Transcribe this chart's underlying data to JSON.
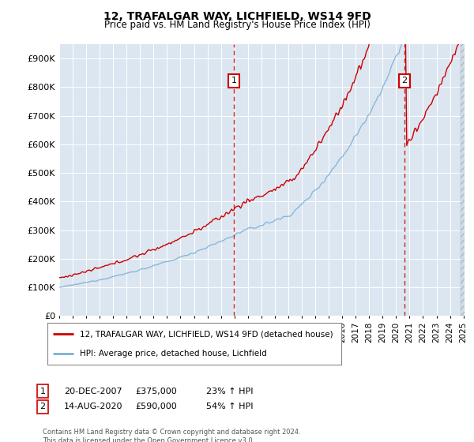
{
  "title": "12, TRAFALGAR WAY, LICHFIELD, WS14 9FD",
  "subtitle": "Price paid vs. HM Land Registry's House Price Index (HPI)",
  "hpi_label": "HPI: Average price, detached house, Lichfield",
  "property_label": "12, TRAFALGAR WAY, LICHFIELD, WS14 9FD (detached house)",
  "footer": "Contains HM Land Registry data © Crown copyright and database right 2024.\nThis data is licensed under the Open Government Licence v3.0.",
  "annotation1": {
    "label": "1",
    "date": "20-DEC-2007",
    "price": 375000,
    "pct": "23% ↑ HPI"
  },
  "annotation2": {
    "label": "2",
    "date": "14-AUG-2020",
    "price": 590000,
    "pct": "54% ↑ HPI"
  },
  "ylim": [
    0,
    950000
  ],
  "yticks": [
    0,
    100000,
    200000,
    300000,
    400000,
    500000,
    600000,
    700000,
    800000,
    900000
  ],
  "ytick_labels": [
    "£0",
    "£100K",
    "£200K",
    "£300K",
    "£400K",
    "£500K",
    "£600K",
    "£700K",
    "£800K",
    "£900K"
  ],
  "property_color": "#cc0000",
  "hpi_color": "#7bafd4",
  "background_color": "#dce6f1",
  "annotation_vline_color": "#cc0000",
  "annotation_box_color": "#cc0000",
  "xmin": 1995,
  "xmax": 2025
}
